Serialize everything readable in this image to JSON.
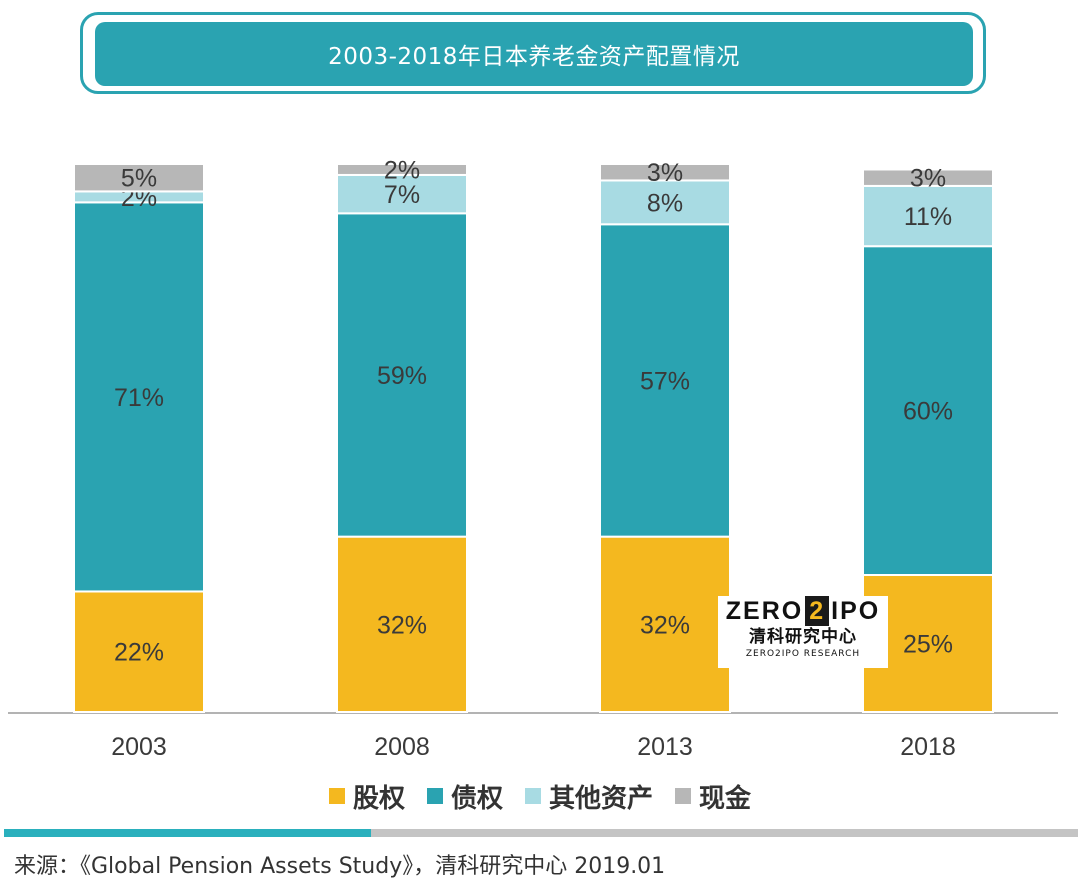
{
  "title": "2003-2018年日本养老金资产配置情况",
  "chart_data": {
    "type": "bar",
    "stacked": true,
    "categories": [
      "2003",
      "2008",
      "2013",
      "2018"
    ],
    "series": [
      {
        "name": "股权",
        "color": "#f4b81f",
        "values": [
          22,
          32,
          32,
          25
        ],
        "labels": [
          "22%",
          "32%",
          "32%",
          "25%"
        ]
      },
      {
        "name": "债权",
        "color": "#2aa3b1",
        "values": [
          71,
          59,
          57,
          60
        ],
        "labels": [
          "71%",
          "59%",
          "57%",
          "60%"
        ]
      },
      {
        "name": "其他资产",
        "color": "#a8dbe3",
        "values": [
          2,
          7,
          8,
          11
        ],
        "labels": [
          "2%",
          "7%",
          "8%",
          "11%"
        ]
      },
      {
        "name": "现金",
        "color": "#b7b7b7",
        "values": [
          5,
          2,
          3,
          3
        ],
        "labels": [
          "5%",
          "2%",
          "3%",
          "3%"
        ]
      }
    ],
    "ylim": [
      0,
      100
    ],
    "legend_position": "bottom"
  },
  "watermark": {
    "brand_left": "ZERO",
    "brand_box": "2",
    "brand_right": "IPO",
    "cn_name": "清科研究中心",
    "sub": "ZERO2IPO RESEARCH"
  },
  "source": "来源：《Global Pension Assets Study》，清科研究中心 2019.01"
}
